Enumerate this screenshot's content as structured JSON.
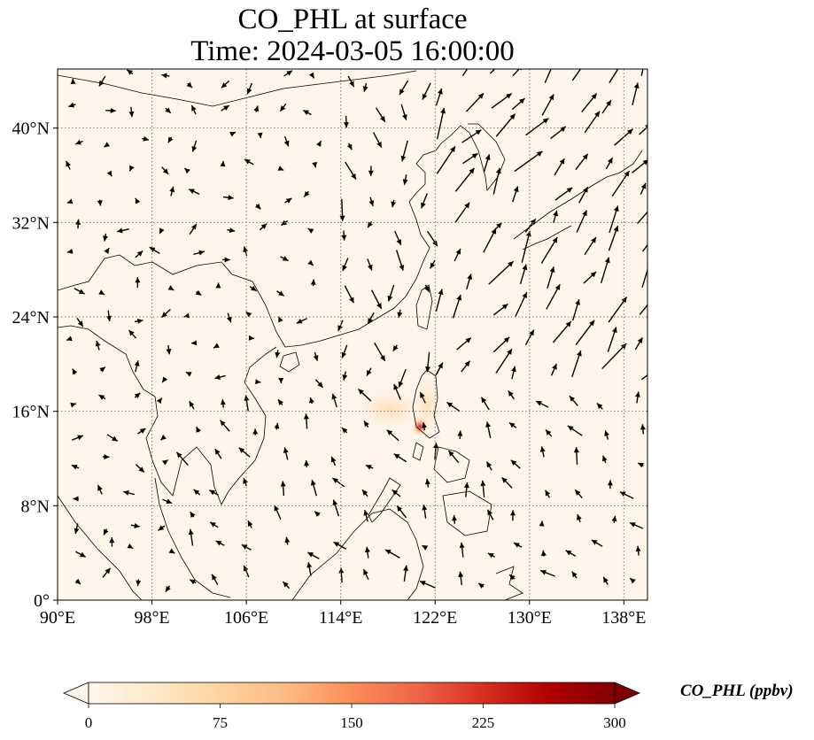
{
  "title": {
    "line1": "CO_PHL at surface",
    "line2": "Time: 2024-03-05 16:00:00"
  },
  "map": {
    "extent": {
      "lon": [
        90,
        140
      ],
      "lat": [
        0,
        45
      ]
    },
    "lon_ticks": [
      90,
      98,
      106,
      114,
      122,
      130,
      138
    ],
    "lat_ticks": [
      0,
      8,
      16,
      24,
      32,
      40
    ],
    "lon_tick_labels": [
      "90°E",
      "98°E",
      "106°E",
      "114°E",
      "122°E",
      "130°E",
      "138°E"
    ],
    "lat_tick_labels": [
      "0°",
      "8°N",
      "16°N",
      "24°N",
      "32°N",
      "40°N"
    ],
    "gridlines": "dotted",
    "background_color": "#fff5eb",
    "coastline_color": "#000000",
    "plume_center": {
      "lon": 121.0,
      "lat": 14.6
    },
    "plume_peak_color": "#b4282c",
    "wind_vectors": "black arrows"
  },
  "colorbar": {
    "label": "CO_PHL (ppbv)",
    "ticks": [
      0,
      75,
      150,
      225,
      300
    ],
    "tick_labels": [
      "0",
      "75",
      "150",
      "225",
      "300"
    ],
    "range": [
      0,
      300
    ],
    "colormap": "OrRd",
    "colors": [
      "#fff7ec",
      "#fee8c8",
      "#fdd49e",
      "#fdbb84",
      "#fc8d59",
      "#ef6548",
      "#d7301f",
      "#b30000",
      "#7f0000"
    ],
    "extend": "both"
  }
}
